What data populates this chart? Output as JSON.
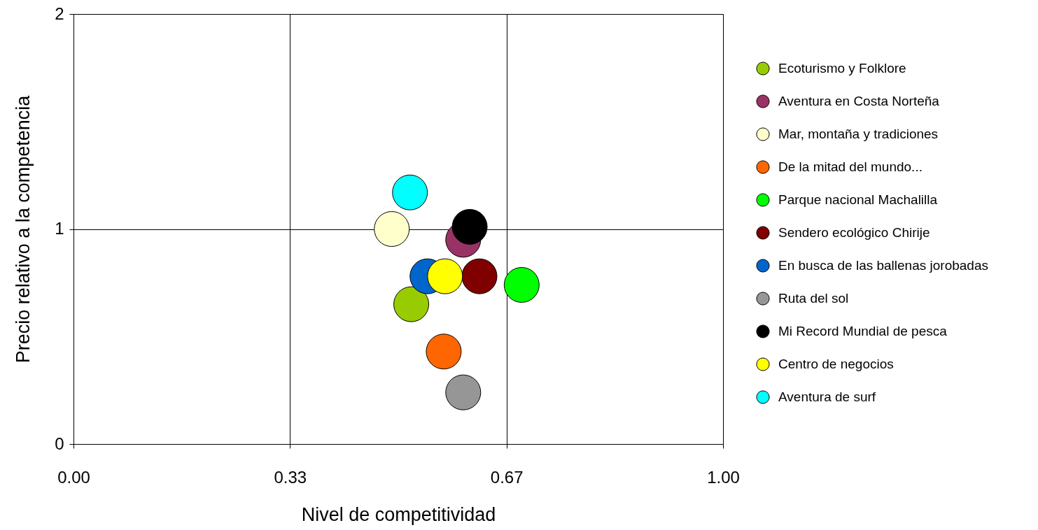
{
  "chart_data": {
    "type": "scatter",
    "xlabel": "Nivel de competitividad",
    "ylabel": "Precio relativo a la competencia",
    "xlim": [
      0,
      1
    ],
    "ylim": [
      0,
      2
    ],
    "xticks": [
      {
        "value": 0,
        "label": "0.00"
      },
      {
        "value": 0.3333,
        "label": "0.33"
      },
      {
        "value": 0.6667,
        "label": "0.67"
      },
      {
        "value": 1,
        "label": "1.00"
      }
    ],
    "yticks": [
      0,
      1,
      2
    ],
    "grid": true,
    "legend": "right",
    "marker": "circle",
    "series": [
      {
        "name": "Ecoturismo y Folklore",
        "color": "#99cc00",
        "x": [
          0.52
        ],
        "values": [
          0.65
        ]
      },
      {
        "name": "Aventura en Costa Norteña",
        "color": "#993366",
        "x": [
          0.6
        ],
        "values": [
          0.95
        ]
      },
      {
        "name": "Mar, montaña y tradiciones",
        "color": "#ffffcc",
        "x": [
          0.49
        ],
        "values": [
          1.0
        ]
      },
      {
        "name": "De la mitad del mundo...",
        "color": "#ff6600",
        "x": [
          0.57
        ],
        "values": [
          0.43
        ]
      },
      {
        "name": "Parque nacional Machalilla",
        "color": "#00ff00",
        "x": [
          0.69
        ],
        "values": [
          0.74
        ]
      },
      {
        "name": "Sendero ecológico Chirije",
        "color": "#800000",
        "x": [
          0.625
        ],
        "values": [
          0.78
        ]
      },
      {
        "name": "En busca de las ballenas jorobadas",
        "color": "#0066cc",
        "x": [
          0.545
        ],
        "values": [
          0.78
        ]
      },
      {
        "name": "Ruta del sol",
        "color": "#969696",
        "x": [
          0.6
        ],
        "values": [
          0.24
        ]
      },
      {
        "name": "Mi Record Mundial de pesca",
        "color": "#000000",
        "x": [
          0.61
        ],
        "values": [
          1.01
        ]
      },
      {
        "name": "Centro de negocios",
        "color": "#ffff00",
        "x": [
          0.572
        ],
        "values": [
          0.78
        ]
      },
      {
        "name": "Aventura de surf",
        "color": "#00ffff",
        "x": [
          0.518
        ],
        "values": [
          1.17
        ]
      }
    ]
  }
}
